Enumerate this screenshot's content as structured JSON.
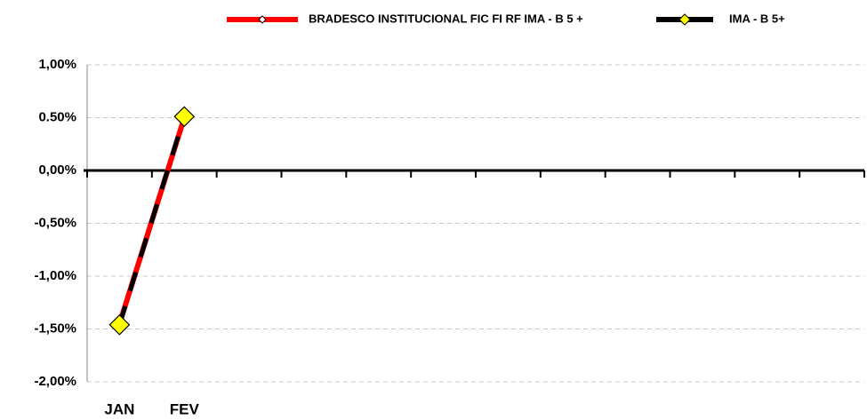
{
  "chart_data": {
    "type": "line",
    "categories": [
      "JAN",
      "FEV",
      null,
      null,
      null,
      null,
      null,
      null,
      null,
      null,
      null,
      null
    ],
    "series": [
      {
        "name": "BRADESCO INSTITUCIONAL FIC FI RF IMA - B 5 +",
        "color": "#ff0000",
        "values": [
          -1.45,
          0.5,
          null,
          null,
          null,
          null,
          null,
          null,
          null,
          null,
          null,
          null
        ]
      },
      {
        "name": "IMA - B 5+",
        "color": "#000000",
        "marker_color": "#ffff00",
        "values": [
          -1.46,
          0.51,
          null,
          null,
          null,
          null,
          null,
          null,
          null,
          null,
          null,
          null
        ]
      }
    ],
    "ylim": [
      -2,
      1
    ],
    "yticks": [
      {
        "value": 1,
        "label": "1,00%"
      },
      {
        "value": 0.5,
        "label": "0.50%"
      },
      {
        "value": 0,
        "label": "0,00%"
      },
      {
        "value": -0.5,
        "label": "-0,50%"
      },
      {
        "value": -1,
        "label": "-1,00%"
      },
      {
        "value": -1.5,
        "label": "-1,50%"
      },
      {
        "value": -2,
        "label": "-2,00%"
      }
    ],
    "grid": true,
    "legend": "top"
  }
}
